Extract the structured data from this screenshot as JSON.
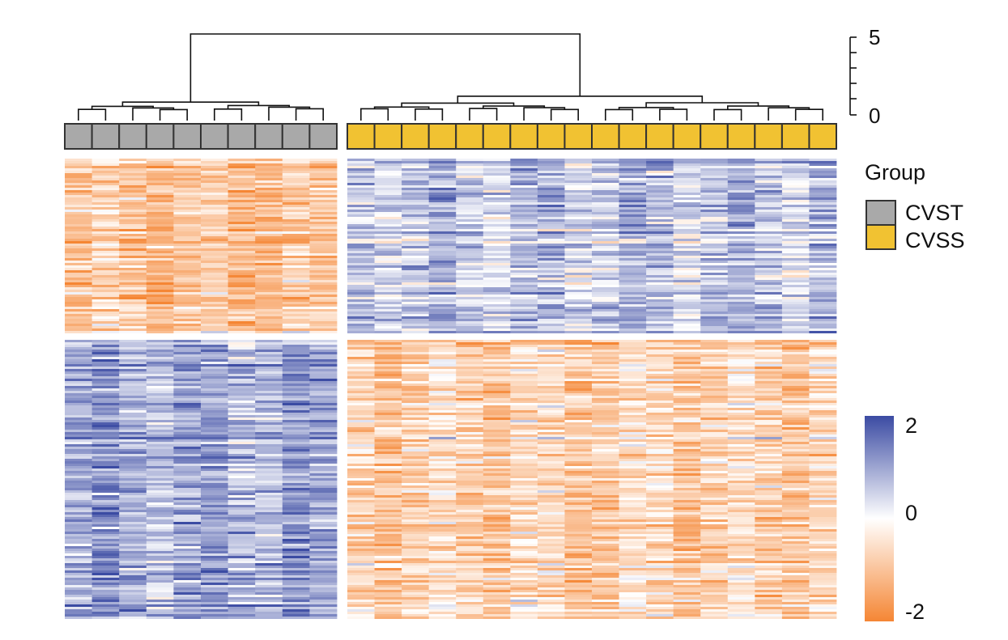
{
  "chart_data": {
    "type": "heatmap",
    "column_groups": [
      {
        "name": "CVST",
        "count": 10
      },
      {
        "name": "CVSS",
        "count": 18
      }
    ],
    "row_clusters": [
      {
        "name": "",
        "mean_by_group": {
          "CVST": -1.0,
          "CVSS": 0.6
        }
      },
      {
        "name": "",
        "mean_by_group": {
          "CVST": 0.9,
          "CVSS": -0.7
        }
      }
    ],
    "dendrogram_scale": {
      "ticks": [
        "5",
        "0"
      ],
      "range": [
        0,
        5
      ]
    },
    "colorbar": {
      "range": [
        -2,
        2
      ],
      "ticks": [
        "2",
        "0",
        "-2"
      ],
      "colors": {
        "low": "#f58634",
        "mid": "#ffffff",
        "high": "#3b4ba3"
      }
    },
    "legend": {
      "title": "Group",
      "items": [
        {
          "label": "CVST",
          "color": "#a9a9a9"
        },
        {
          "label": "CVSS",
          "color": "#f1c232"
        }
      ]
    }
  }
}
